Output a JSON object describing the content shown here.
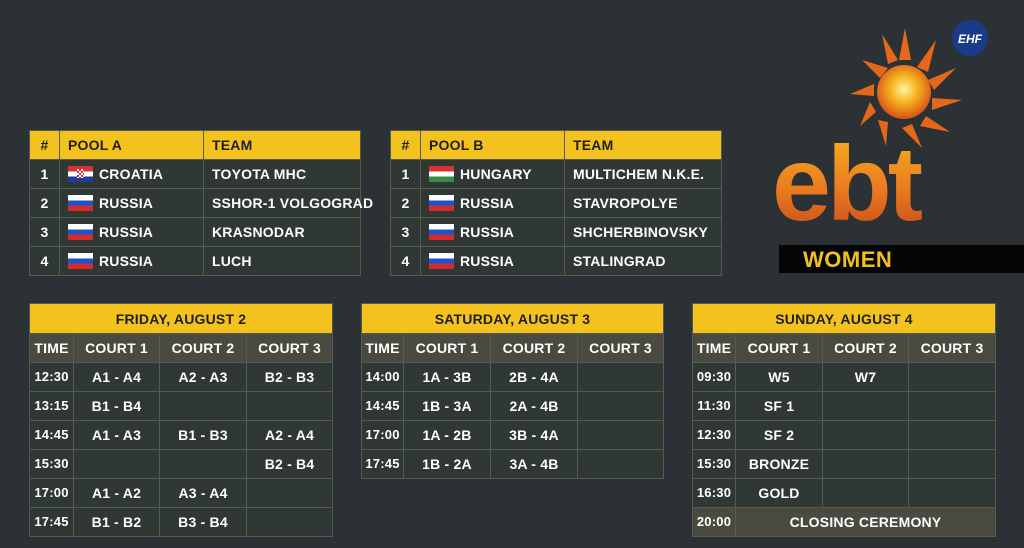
{
  "poolA": {
    "headers": {
      "num": "#",
      "pool": "POOL A",
      "team": "TEAM"
    },
    "rows": [
      {
        "num": "1",
        "flag": "hr",
        "country": "CROATIA",
        "team": "TOYOTA MHC"
      },
      {
        "num": "2",
        "flag": "ru",
        "country": "RUSSIA",
        "team": "SSHOR-1 VOLGOGRAD"
      },
      {
        "num": "3",
        "flag": "ru",
        "country": "RUSSIA",
        "team": "KRASNODAR"
      },
      {
        "num": "4",
        "flag": "ru",
        "country": "RUSSIA",
        "team": "LUCH"
      }
    ]
  },
  "poolB": {
    "headers": {
      "num": "#",
      "pool": "POOL B",
      "team": "TEAM"
    },
    "rows": [
      {
        "num": "1",
        "flag": "hu",
        "country": "HUNGARY",
        "team": "MULTICHEM N.K.E."
      },
      {
        "num": "2",
        "flag": "ru",
        "country": "RUSSIA",
        "team": "STAVROPOLYE"
      },
      {
        "num": "3",
        "flag": "ru",
        "country": "RUSSIA",
        "team": "SHCHERBINOVSKY"
      },
      {
        "num": "4",
        "flag": "ru",
        "country": "RUSSIA",
        "team": "STALINGRAD"
      }
    ]
  },
  "schedule_headers": {
    "time": "TIME",
    "court1": "COURT 1",
    "court2": "COURT 2",
    "court3": "COURT 3"
  },
  "friday": {
    "title": "FRIDAY, AUGUST 2",
    "rows": [
      [
        "12:30",
        "A1 - A4",
        "A2 - A3",
        "B2 - B3"
      ],
      [
        "13:15",
        "B1 - B4",
        "",
        ""
      ],
      [
        "14:45",
        "A1 - A3",
        "B1 - B3",
        "A2 - A4"
      ],
      [
        "15:30",
        "",
        "",
        "B2 - B4"
      ],
      [
        "17:00",
        "A1 - A2",
        "A3 - A4",
        ""
      ],
      [
        "17:45",
        "B1 - B2",
        "B3 - B4",
        ""
      ]
    ]
  },
  "saturday": {
    "title": "SATURDAY, AUGUST 3",
    "rows": [
      [
        "14:00",
        "1A - 3B",
        "2B - 4A",
        ""
      ],
      [
        "14:45",
        "1B - 3A",
        "2A - 4B",
        ""
      ],
      [
        "17:00",
        "1A - 2B",
        "3B - 4A",
        ""
      ],
      [
        "17:45",
        "1B - 2A",
        "3A - 4B",
        ""
      ]
    ]
  },
  "sunday": {
    "title": "SUNDAY, AUGUST 4",
    "rows": [
      [
        "09:30",
        "W5",
        "W7",
        ""
      ],
      [
        "11:30",
        "SF 1",
        "",
        ""
      ],
      [
        "12:30",
        "SF 2",
        "",
        ""
      ],
      [
        "15:30",
        "BRONZE",
        "",
        ""
      ],
      [
        "16:30",
        "GOLD",
        "",
        ""
      ]
    ],
    "ceremony_time": "20:00",
    "ceremony_label": "CLOSING CEREMONY"
  },
  "logo": {
    "brand": "ebt",
    "subtitle": "WOMEN",
    "badge": "EHF"
  },
  "colors": {
    "background": "#2b3134",
    "header_yellow": "#f3c21f",
    "cell_dark": "#2f3834",
    "column_header": "#4a4a40",
    "logo_orange": "#e8731e"
  }
}
